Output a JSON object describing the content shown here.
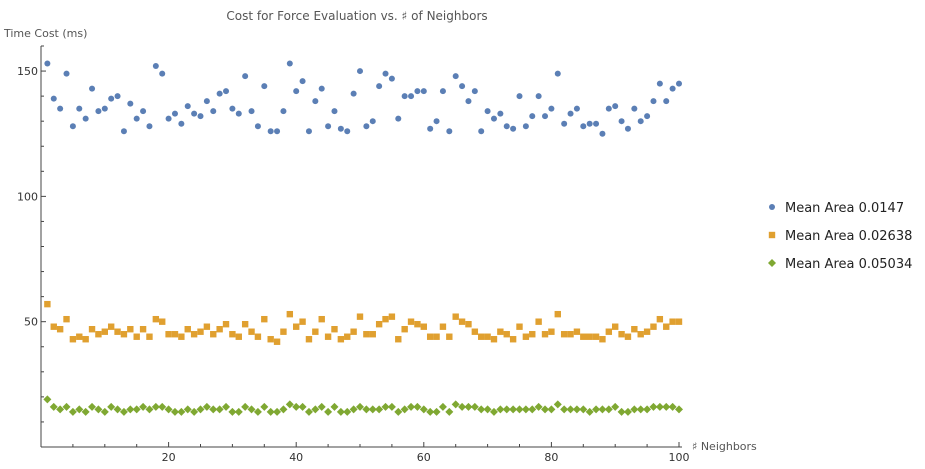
{
  "chart_data": {
    "type": "scatter",
    "title": "Cost for Force Evaluation vs. ♯ of Neighbors",
    "xlabel": "♯ Neighbors",
    "ylabel": "Time Cost (ms)",
    "xlim": [
      0,
      100
    ],
    "ylim": [
      0,
      160
    ],
    "x_ticks": [
      20,
      40,
      60,
      80,
      100
    ],
    "y_ticks": [
      50,
      100,
      150
    ],
    "grid": false,
    "legend_position": "right",
    "x": [
      1,
      2,
      3,
      4,
      5,
      6,
      7,
      8,
      9,
      10,
      11,
      12,
      13,
      14,
      15,
      16,
      17,
      18,
      19,
      20,
      21,
      22,
      23,
      24,
      25,
      26,
      27,
      28,
      29,
      30,
      31,
      32,
      33,
      34,
      35,
      36,
      37,
      38,
      39,
      40,
      41,
      42,
      43,
      44,
      45,
      46,
      47,
      48,
      49,
      50,
      51,
      52,
      53,
      54,
      55,
      56,
      57,
      58,
      59,
      60,
      61,
      62,
      63,
      64,
      65,
      66,
      67,
      68,
      69,
      70,
      71,
      72,
      73,
      74,
      75,
      76,
      77,
      78,
      79,
      80,
      81,
      82,
      83,
      84,
      85,
      86,
      87,
      88,
      89,
      90,
      91,
      92,
      93,
      94,
      95,
      96,
      97,
      98,
      99,
      100
    ],
    "series": [
      {
        "name": "Mean Area 0.0147",
        "color": "#5b7fb5",
        "marker": "circle",
        "values": [
          153,
          139,
          135,
          149,
          128,
          135,
          131,
          143,
          134,
          135,
          139,
          140,
          126,
          137,
          131,
          134,
          128,
          152,
          149,
          131,
          133,
          129,
          136,
          133,
          132,
          138,
          134,
          141,
          142,
          135,
          133,
          148,
          134,
          128,
          144,
          126,
          126,
          134,
          153,
          142,
          146,
          126,
          138,
          143,
          128,
          134,
          127,
          126,
          141,
          150,
          128,
          130,
          144,
          149,
          147,
          131,
          140,
          140,
          142,
          142,
          127,
          130,
          142,
          126,
          148,
          144,
          138,
          142,
          126,
          134,
          131,
          133,
          128,
          127,
          140,
          128,
          132,
          140,
          132,
          135,
          149,
          129,
          133,
          135,
          128,
          129,
          129,
          125,
          135,
          136,
          130,
          127,
          135,
          130,
          132,
          138,
          145,
          138,
          143,
          145
        ]
      },
      {
        "name": "Mean Area 0.02638",
        "color": "#e0a030",
        "marker": "square",
        "values": [
          57,
          48,
          47,
          51,
          43,
          44,
          43,
          47,
          45,
          46,
          48,
          46,
          45,
          47,
          44,
          47,
          44,
          51,
          50,
          45,
          45,
          44,
          47,
          45,
          46,
          48,
          45,
          47,
          49,
          45,
          44,
          49,
          46,
          44,
          51,
          43,
          42,
          46,
          53,
          48,
          50,
          43,
          46,
          51,
          44,
          47,
          43,
          44,
          46,
          52,
          45,
          45,
          49,
          51,
          52,
          43,
          47,
          50,
          49,
          48,
          44,
          44,
          48,
          44,
          52,
          50,
          49,
          46,
          44,
          44,
          43,
          46,
          45,
          43,
          48,
          44,
          45,
          50,
          45,
          46,
          53,
          45,
          45,
          46,
          44,
          44,
          44,
          43,
          46,
          48,
          45,
          44,
          47,
          45,
          46,
          48,
          51,
          48,
          50,
          50
        ]
      },
      {
        "name": "Mean Area 0.05034",
        "color": "#7fa832",
        "marker": "diamond",
        "values": [
          19,
          16,
          15,
          16,
          14,
          15,
          14,
          16,
          15,
          14,
          16,
          15,
          14,
          15,
          15,
          16,
          15,
          16,
          16,
          15,
          14,
          14,
          15,
          14,
          15,
          16,
          15,
          15,
          16,
          14,
          14,
          16,
          15,
          14,
          16,
          14,
          14,
          15,
          17,
          16,
          16,
          14,
          15,
          16,
          14,
          16,
          14,
          14,
          15,
          16,
          15,
          15,
          15,
          16,
          16,
          14,
          15,
          16,
          16,
          15,
          14,
          14,
          16,
          14,
          17,
          16,
          16,
          16,
          15,
          15,
          14,
          15,
          15,
          15,
          15,
          15,
          15,
          16,
          15,
          15,
          17,
          15,
          15,
          15,
          15,
          14,
          15,
          15,
          15,
          16,
          14,
          14,
          15,
          15,
          15,
          16,
          16,
          16,
          16,
          15
        ]
      }
    ]
  }
}
